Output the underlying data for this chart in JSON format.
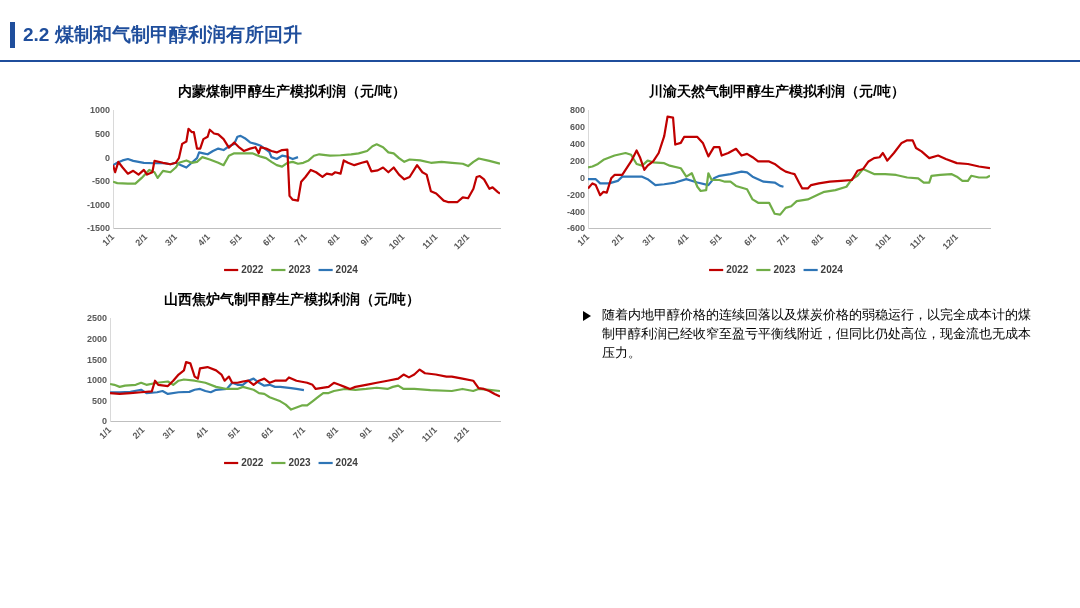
{
  "chart_data": [
    {
      "type": "line",
      "title": "内蒙煤制甲醇生产模拟利润（元/吨）",
      "xlim": [
        "--01-01",
        "--12-31"
      ],
      "xticks": [
        {
          "value": "--01-01",
          "label": "1/1"
        },
        {
          "value": "--02-01",
          "label": "2/1"
        },
        {
          "value": "--03-01",
          "label": "3/1"
        },
        {
          "value": "--04-01",
          "label": "4/1"
        },
        {
          "value": "--05-01",
          "label": "5/1"
        },
        {
          "value": "--06-01",
          "label": "6/1"
        },
        {
          "value": "--07-01",
          "label": "7/1"
        },
        {
          "value": "--08-01",
          "label": "8/1"
        },
        {
          "value": "--09-01",
          "label": "9/1"
        },
        {
          "value": "--10-01",
          "label": "10/1"
        },
        {
          "value": "--11-01",
          "label": "11/1"
        },
        {
          "value": "--12-01",
          "label": "12/1"
        }
      ],
      "ylim": [
        -1500,
        1000
      ],
      "yticks": [
        -1500,
        -1000,
        -500,
        0,
        500,
        1000
      ],
      "grid": false,
      "legend": "bottom",
      "marker": "none",
      "line_style": "solid",
      "series": [
        {
          "name": "2022",
          "color": "#c00000",
          "x": [
            "--01-01",
            "--01-03",
            "--01-06",
            "--01-10",
            "--01-15",
            "--01-20",
            "--01-25",
            "--01-30",
            "--02-02",
            "--02-07",
            "--02-09",
            "--02-17",
            "--02-24",
            "--03-01",
            "--03-04",
            "--03-07",
            "--03-11",
            "--03-13",
            "--03-16",
            "--03-18",
            "--03-21",
            "--03-24",
            "--03-27",
            "--03-31",
            "--04-02",
            "--04-06",
            "--04-10",
            "--04-15",
            "--04-20",
            "--04-25",
            "--04-30",
            "--05-04",
            "--05-10",
            "--05-15",
            "--05-18",
            "--05-20",
            "--05-25",
            "--05-30",
            "--06-04",
            "--06-09",
            "--06-14",
            "--06-16",
            "--06-19",
            "--06-24",
            "--06-27",
            "--07-01",
            "--07-06",
            "--07-11",
            "--07-17",
            "--07-21",
            "--07-26",
            "--07-29",
            "--08-03",
            "--08-06",
            "--08-10",
            "--08-16",
            "--08-23",
            "--08-28",
            "--09-01",
            "--09-07",
            "--09-12",
            "--09-17",
            "--09-22",
            "--09-27",
            "--10-02",
            "--10-07",
            "--10-14",
            "--10-19",
            "--10-23",
            "--10-27",
            "--11-01",
            "--11-08",
            "--11-12",
            "--11-21",
            "--11-26",
            "--12-01",
            "--12-06",
            "--12-09",
            "--12-12",
            "--12-16",
            "--12-21",
            "--12-24",
            "--12-29",
            "--12-31"
          ],
          "values": [
            -150,
            -300,
            -80,
            -200,
            -330,
            -270,
            -350,
            -250,
            -350,
            -300,
            -60,
            -100,
            -130,
            -100,
            0,
            300,
            350,
            620,
            550,
            550,
            200,
            200,
            400,
            450,
            600,
            520,
            500,
            400,
            220,
            330,
            220,
            150,
            200,
            230,
            100,
            230,
            200,
            150,
            120,
            170,
            180,
            -800,
            -880,
            -900,
            -500,
            -400,
            -250,
            -300,
            -400,
            -330,
            -350,
            -300,
            -330,
            -50,
            -100,
            -150,
            -100,
            -70,
            -280,
            -260,
            -200,
            -300,
            -200,
            -350,
            -450,
            -400,
            -150,
            -300,
            -350,
            -700,
            -750,
            -900,
            -930,
            -930,
            -830,
            -850,
            -650,
            -400,
            -380,
            -450,
            -650,
            -620,
            -720,
            -750
          ]
        },
        {
          "name": "2023",
          "color": "#70ad47",
          "x": [
            "--01-01",
            "--01-05",
            "--01-15",
            "--01-22",
            "--01-28",
            "--02-04",
            "--02-09",
            "--02-12",
            "--02-17",
            "--02-24",
            "--03-01",
            "--03-04",
            "--03-11",
            "--03-16",
            "--03-21",
            "--03-26",
            "--04-02",
            "--04-10",
            "--04-15",
            "--04-20",
            "--04-25",
            "--05-05",
            "--05-12",
            "--05-20",
            "--05-25",
            "--05-30",
            "--06-04",
            "--06-09",
            "--06-14",
            "--06-19",
            "--06-24",
            "--06-29",
            "--07-04",
            "--07-09",
            "--07-14",
            "--07-24",
            "--08-03",
            "--08-13",
            "--08-20",
            "--08-28",
            "--09-02",
            "--09-06",
            "--09-12",
            "--09-17",
            "--09-22",
            "--09-27",
            "--10-02",
            "--10-07",
            "--10-17",
            "--10-27",
            "--11-06",
            "--11-16",
            "--11-26",
            "--12-01",
            "--12-06",
            "--12-11",
            "--12-21",
            "--12-31"
          ],
          "values": [
            -500,
            -530,
            -540,
            -540,
            -420,
            -250,
            -300,
            -420,
            -270,
            -300,
            -200,
            -100,
            -50,
            -100,
            -80,
            20,
            -30,
            -100,
            -150,
            50,
            100,
            100,
            100,
            30,
            0,
            -80,
            -150,
            -180,
            -100,
            -80,
            -120,
            -100,
            -50,
            50,
            80,
            50,
            60,
            80,
            100,
            150,
            250,
            290,
            230,
            120,
            100,
            0,
            -80,
            -30,
            -50,
            -100,
            -80,
            -100,
            -120,
            -170,
            -80,
            -10,
            -60,
            -120
          ]
        },
        {
          "name": "2024",
          "color": "#2e75b6",
          "x": [
            "--01-01",
            "--01-05",
            "--01-10",
            "--01-15",
            "--01-20",
            "--01-30",
            "--02-09",
            "--02-19",
            "--02-24",
            "--03-01",
            "--03-06",
            "--03-11",
            "--03-16",
            "--03-21",
            "--03-23",
            "--03-27",
            "--03-31",
            "--04-05",
            "--04-10",
            "--04-15",
            "--04-20",
            "--04-25",
            "--04-28",
            "--05-01",
            "--05-05",
            "--05-10",
            "--05-15",
            "--05-20",
            "--05-25",
            "--05-28",
            "--05-30",
            "--06-04",
            "--06-09",
            "--06-14",
            "--06-19",
            "--06-24"
          ],
          "values": [
            -150,
            -100,
            -50,
            -20,
            -60,
            -100,
            -110,
            -110,
            -130,
            -100,
            -150,
            -200,
            -100,
            0,
            120,
            100,
            80,
            150,
            200,
            170,
            250,
            300,
            450,
            470,
            420,
            330,
            300,
            260,
            180,
            130,
            20,
            -20,
            50,
            30,
            -20,
            20
          ]
        }
      ]
    },
    {
      "type": "line",
      "title": "川渝天然气制甲醇生产模拟利润（元/吨）",
      "xlim": [
        "--01-01",
        "--12-31"
      ],
      "xticks": [
        {
          "value": "--01-01",
          "label": "1/1"
        },
        {
          "value": "--02-01",
          "label": "2/1"
        },
        {
          "value": "--03-01",
          "label": "3/1"
        },
        {
          "value": "--04-01",
          "label": "4/1"
        },
        {
          "value": "--05-01",
          "label": "5/1"
        },
        {
          "value": "--06-01",
          "label": "6/1"
        },
        {
          "value": "--07-01",
          "label": "7/1"
        },
        {
          "value": "--08-01",
          "label": "8/1"
        },
        {
          "value": "--09-01",
          "label": "9/1"
        },
        {
          "value": "--10-01",
          "label": "10/1"
        },
        {
          "value": "--11-01",
          "label": "11/1"
        },
        {
          "value": "--12-01",
          "label": "12/1"
        }
      ],
      "ylim": [
        -600,
        800
      ],
      "yticks": [
        -600,
        -400,
        -200,
        0,
        200,
        400,
        600,
        800
      ],
      "grid": false,
      "legend": "bottom",
      "marker": "none",
      "line_style": "solid",
      "series": [
        {
          "name": "2022",
          "color": "#c00000",
          "x": [
            "--01-01",
            "--01-05",
            "--01-08",
            "--01-12",
            "--01-15",
            "--01-18",
            "--01-22",
            "--01-25",
            "--02-01",
            "--02-09",
            "--02-14",
            "--02-17",
            "--02-21",
            "--02-24",
            "--03-01",
            "--03-06",
            "--03-11",
            "--03-14",
            "--03-19",
            "--03-21",
            "--03-26",
            "--03-29",
            "--04-10",
            "--04-15",
            "--04-20",
            "--04-25",
            "--04-30",
            "--05-02",
            "--05-08",
            "--05-15",
            "--05-20",
            "--05-25",
            "--05-30",
            "--06-04",
            "--06-14",
            "--06-19",
            "--06-24",
            "--06-29",
            "--07-04",
            "--07-07",
            "--07-11",
            "--07-14",
            "--07-19",
            "--07-22",
            "--07-29",
            "--08-08",
            "--08-18",
            "--08-28",
            "--09-02",
            "--09-07",
            "--09-12",
            "--09-17",
            "--09-22",
            "--09-25",
            "--09-29",
            "--10-05",
            "--10-12",
            "--10-17",
            "--10-22",
            "--10-25",
            "--10-30",
            "--11-06",
            "--11-14",
            "--11-21",
            "--12-01",
            "--12-11",
            "--12-21",
            "--12-31"
          ],
          "values": [
            -120,
            -60,
            -80,
            -200,
            -160,
            -170,
            0,
            40,
            40,
            200,
            330,
            250,
            100,
            150,
            200,
            300,
            500,
            730,
            720,
            400,
            420,
            490,
            490,
            420,
            260,
            370,
            370,
            270,
            300,
            350,
            270,
            290,
            250,
            200,
            200,
            170,
            120,
            80,
            60,
            50,
            -50,
            -120,
            -120,
            -80,
            -60,
            -40,
            -30,
            -20,
            90,
            110,
            200,
            240,
            250,
            300,
            210,
            300,
            420,
            450,
            450,
            360,
            320,
            240,
            270,
            230,
            180,
            170,
            140,
            120
          ]
        },
        {
          "name": "2023",
          "color": "#70ad47",
          "x": [
            "--01-01",
            "--01-05",
            "--01-10",
            "--01-15",
            "--01-25",
            "--02-04",
            "--02-09",
            "--02-14",
            "--02-19",
            "--02-24",
            "--03-01",
            "--03-11",
            "--03-16",
            "--03-26",
            "--03-31",
            "--04-05",
            "--04-10",
            "--04-13",
            "--04-18",
            "--04-20",
            "--04-23",
            "--04-30",
            "--05-05",
            "--05-10",
            "--05-15",
            "--05-25",
            "--05-30",
            "--06-04",
            "--06-14",
            "--06-19",
            "--06-24",
            "--06-29",
            "--07-04",
            "--07-09",
            "--07-19",
            "--07-29",
            "--08-03",
            "--08-13",
            "--08-23",
            "--08-28",
            "--09-02",
            "--09-07",
            "--09-12",
            "--09-17",
            "--09-27",
            "--10-07",
            "--10-17",
            "--10-27",
            "--11-01",
            "--11-06",
            "--11-08",
            "--11-16",
            "--11-26",
            "--12-01",
            "--12-06",
            "--12-11",
            "--12-14",
            "--12-21",
            "--12-28",
            "--12-31"
          ],
          "values": [
            130,
            140,
            170,
            220,
            270,
            300,
            280,
            170,
            150,
            210,
            190,
            180,
            150,
            120,
            20,
            60,
            -100,
            -150,
            -140,
            60,
            -20,
            -20,
            -40,
            -40,
            -90,
            -130,
            -250,
            -290,
            -290,
            -420,
            -430,
            -350,
            -330,
            -270,
            -250,
            -190,
            -160,
            -140,
            -100,
            -10,
            30,
            110,
            80,
            50,
            50,
            40,
            10,
            0,
            -50,
            -50,
            30,
            40,
            50,
            20,
            -30,
            -30,
            30,
            10,
            10,
            30
          ]
        },
        {
          "name": "2024",
          "color": "#2e75b6",
          "x": [
            "--01-01",
            "--01-08",
            "--01-12",
            "--01-20",
            "--01-28",
            "--02-01",
            "--02-19",
            "--02-24",
            "--03-03",
            "--03-11",
            "--03-21",
            "--03-31",
            "--04-10",
            "--04-20",
            "--04-25",
            "--04-30",
            "--05-10",
            "--05-20",
            "--05-25",
            "--05-30",
            "--06-04",
            "--06-09",
            "--06-19",
            "--06-24",
            "--06-27"
          ],
          "values": [
            -10,
            -10,
            -60,
            -60,
            -30,
            20,
            20,
            -10,
            -80,
            -70,
            -50,
            -10,
            -50,
            -80,
            0,
            30,
            50,
            80,
            70,
            20,
            -10,
            -40,
            -50,
            -90,
            -100
          ]
        }
      ]
    },
    {
      "type": "line",
      "title": "山西焦炉气制甲醇生产模拟利润（元/吨）",
      "xlim": [
        "--01-01",
        "--12-31"
      ],
      "xticks": [
        {
          "value": "--01-01",
          "label": "1/1"
        },
        {
          "value": "--02-01",
          "label": "2/1"
        },
        {
          "value": "--03-01",
          "label": "3/1"
        },
        {
          "value": "--04-01",
          "label": "4/1"
        },
        {
          "value": "--05-01",
          "label": "5/1"
        },
        {
          "value": "--06-01",
          "label": "6/1"
        },
        {
          "value": "--07-01",
          "label": "7/1"
        },
        {
          "value": "--08-01",
          "label": "8/1"
        },
        {
          "value": "--09-01",
          "label": "9/1"
        },
        {
          "value": "--10-01",
          "label": "10/1"
        },
        {
          "value": "--11-01",
          "label": "11/1"
        },
        {
          "value": "--12-01",
          "label": "12/1"
        }
      ],
      "ylim": [
        0,
        2500
      ],
      "yticks": [
        0,
        500,
        1000,
        1500,
        2000,
        2500
      ],
      "grid": false,
      "legend": "bottom",
      "marker": "none",
      "line_style": "solid",
      "series": [
        {
          "name": "2022",
          "color": "#c00000",
          "x": [
            "--01-01",
            "--01-10",
            "--01-20",
            "--01-30",
            "--02-09",
            "--02-12",
            "--02-15",
            "--02-24",
            "--03-01",
            "--03-06",
            "--03-11",
            "--03-13",
            "--03-17",
            "--03-21",
            "--03-24",
            "--03-26",
            "--04-02",
            "--04-10",
            "--04-15",
            "--04-18",
            "--04-22",
            "--04-25",
            "--04-30",
            "--05-05",
            "--05-10",
            "--05-15",
            "--05-20",
            "--05-25",
            "--05-30",
            "--06-04",
            "--06-14",
            "--06-17",
            "--06-24",
            "--07-04",
            "--07-09",
            "--07-12",
            "--07-24",
            "--07-29",
            "--08-03",
            "--08-08",
            "--08-13",
            "--08-18",
            "--08-28",
            "--09-07",
            "--09-17",
            "--09-27",
            "--10-02",
            "--10-07",
            "--10-12",
            "--10-17",
            "--10-22",
            "--11-01",
            "--11-11",
            "--11-16",
            "--11-26",
            "--12-06",
            "--12-11",
            "--12-16",
            "--12-21",
            "--12-26",
            "--12-31"
          ],
          "values": [
            700,
            680,
            700,
            720,
            740,
            1000,
            900,
            870,
            1000,
            1150,
            1250,
            1450,
            1420,
            1100,
            1050,
            1300,
            1330,
            1250,
            1150,
            1000,
            1100,
            950,
            950,
            980,
            1000,
            900,
            1000,
            1050,
            950,
            1000,
            1000,
            1080,
            1000,
            950,
            900,
            800,
            850,
            950,
            900,
            850,
            800,
            850,
            900,
            950,
            1000,
            1050,
            1150,
            1080,
            1150,
            1270,
            1180,
            1150,
            1100,
            1100,
            1050,
            1000,
            820,
            800,
            750,
            680,
            620
          ]
        },
        {
          "name": "2023",
          "color": "#70ad47",
          "x": [
            "--01-01",
            "--01-05",
            "--01-10",
            "--01-15",
            "--01-25",
            "--01-30",
            "--02-04",
            "--02-14",
            "--02-24",
            "--03-01",
            "--03-06",
            "--03-11",
            "--03-21",
            "--03-31",
            "--04-10",
            "--04-20",
            "--04-30",
            "--05-05",
            "--05-15",
            "--05-20",
            "--05-25",
            "--05-30",
            "--06-04",
            "--06-09",
            "--06-14",
            "--06-19",
            "--06-24",
            "--06-29",
            "--07-04",
            "--07-09",
            "--07-14",
            "--07-19",
            "--07-24",
            "--07-29",
            "--08-08",
            "--08-18",
            "--08-28",
            "--09-07",
            "--09-17",
            "--09-22",
            "--09-27",
            "--10-02",
            "--10-12",
            "--10-27",
            "--11-16",
            "--11-26",
            "--12-06",
            "--12-11",
            "--12-21",
            "--12-31"
          ],
          "values": [
            920,
            900,
            850,
            880,
            900,
            950,
            900,
            950,
            980,
            900,
            1000,
            1030,
            1000,
            950,
            850,
            800,
            800,
            850,
            780,
            700,
            680,
            600,
            550,
            500,
            420,
            300,
            350,
            400,
            400,
            500,
            600,
            700,
            700,
            750,
            800,
            780,
            800,
            830,
            800,
            850,
            880,
            800,
            800,
            770,
            750,
            800,
            750,
            800,
            780,
            750
          ]
        },
        {
          "name": "2024",
          "color": "#2e75b6",
          "x": [
            "--01-01",
            "--01-10",
            "--01-20",
            "--01-30",
            "--02-04",
            "--02-14",
            "--02-19",
            "--02-24",
            "--03-06",
            "--03-16",
            "--03-21",
            "--03-26",
            "--03-31",
            "--04-05",
            "--04-10",
            "--04-20",
            "--04-25",
            "--04-30",
            "--05-05",
            "--05-10",
            "--05-15",
            "--05-20",
            "--05-25",
            "--05-30",
            "--06-04",
            "--06-09",
            "--06-19",
            "--06-24",
            "--07-01"
          ],
          "values": [
            720,
            720,
            730,
            780,
            700,
            720,
            750,
            680,
            720,
            730,
            780,
            800,
            750,
            720,
            780,
            800,
            950,
            900,
            900,
            1000,
            1050,
            950,
            880,
            900,
            850,
            850,
            820,
            800,
            770
          ]
        }
      ]
    },
    {
      "type": "other",
      "title": "2.2 煤制和气制甲醇利润有所回升",
      "annotations": [
        "随着内地甲醇价格的连续回落以及煤炭价格的弱稳运行，以完全成本计的煤制甲醇利润已经收窄至盈亏平衡线附近，但同比仍处高位，现金流也无成本压力。"
      ]
    }
  ]
}
